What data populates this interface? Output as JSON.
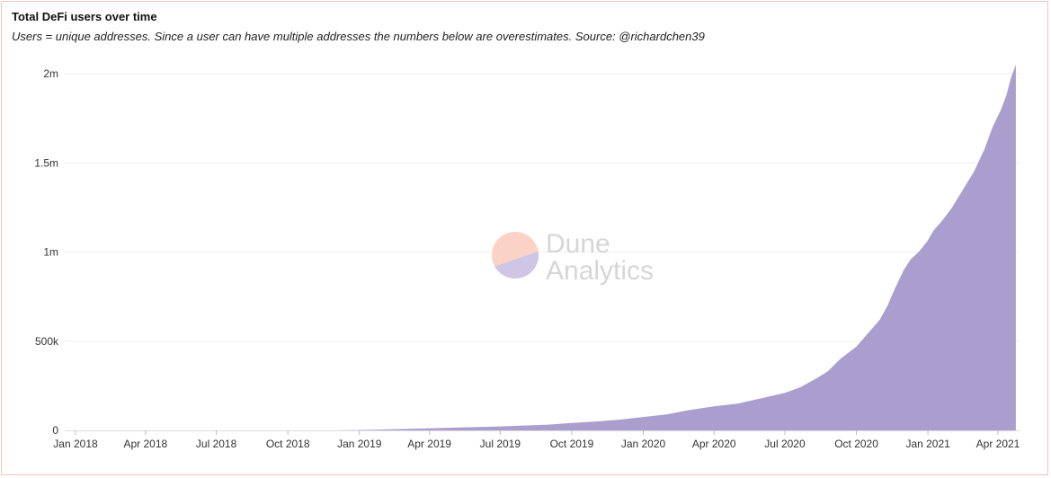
{
  "header": {
    "title": "Total DeFi users over time",
    "subtitle": "Users = unique addresses. Since a user can have multiple addresses the numbers below are overestimates. Source: @richardchen39"
  },
  "watermark": {
    "line1": "Dune",
    "line2": "Analytics",
    "colors": [
      "#fbd3c6",
      "#cfc6e6"
    ]
  },
  "chart_data": {
    "type": "area",
    "title": "Total DeFi users over time",
    "xlabel": "",
    "ylabel": "",
    "color": "#a99ecd",
    "grid": true,
    "legend": "none",
    "xlim": [
      "2018-01-01",
      "2021-05-01"
    ],
    "ylim": [
      0,
      2100000
    ],
    "x_ticks": [
      {
        "date": "2018-01-01",
        "label": "Jan 2018"
      },
      {
        "date": "2018-04-01",
        "label": "Apr 2018"
      },
      {
        "date": "2018-07-01",
        "label": "Jul 2018"
      },
      {
        "date": "2018-10-01",
        "label": "Oct 2018"
      },
      {
        "date": "2019-01-01",
        "label": "Jan 2019"
      },
      {
        "date": "2019-04-01",
        "label": "Apr 2019"
      },
      {
        "date": "2019-07-01",
        "label": "Jul 2019"
      },
      {
        "date": "2019-10-01",
        "label": "Oct 2019"
      },
      {
        "date": "2020-01-01",
        "label": "Jan 2020"
      },
      {
        "date": "2020-04-01",
        "label": "Apr 2020"
      },
      {
        "date": "2020-07-01",
        "label": "Jul 2020"
      },
      {
        "date": "2020-10-01",
        "label": "Oct 2020"
      },
      {
        "date": "2021-01-01",
        "label": "Jan 2021"
      },
      {
        "date": "2021-04-01",
        "label": "Apr 2021"
      }
    ],
    "y_ticks": [
      {
        "value": 0,
        "label": "0"
      },
      {
        "value": 500000,
        "label": "500k"
      },
      {
        "value": 1000000,
        "label": "1m"
      },
      {
        "value": 1500000,
        "label": "1.5m"
      },
      {
        "value": 2000000,
        "label": "2m"
      }
    ],
    "series": [
      {
        "points": [
          {
            "x": "2018-01-01",
            "y": 0
          },
          {
            "x": "2018-06-01",
            "y": 0
          },
          {
            "x": "2018-12-01",
            "y": 0
          },
          {
            "x": "2019-01-15",
            "y": 3000
          },
          {
            "x": "2019-03-01",
            "y": 8000
          },
          {
            "x": "2019-05-01",
            "y": 15000
          },
          {
            "x": "2019-07-01",
            "y": 22000
          },
          {
            "x": "2019-09-01",
            "y": 32000
          },
          {
            "x": "2019-10-01",
            "y": 42000
          },
          {
            "x": "2019-11-01",
            "y": 50000
          },
          {
            "x": "2019-12-01",
            "y": 60000
          },
          {
            "x": "2020-01-01",
            "y": 75000
          },
          {
            "x": "2020-02-01",
            "y": 90000
          },
          {
            "x": "2020-03-01",
            "y": 115000
          },
          {
            "x": "2020-04-01",
            "y": 135000
          },
          {
            "x": "2020-05-01",
            "y": 150000
          },
          {
            "x": "2020-06-01",
            "y": 180000
          },
          {
            "x": "2020-07-01",
            "y": 210000
          },
          {
            "x": "2020-07-20",
            "y": 240000
          },
          {
            "x": "2020-08-10",
            "y": 290000
          },
          {
            "x": "2020-08-25",
            "y": 330000
          },
          {
            "x": "2020-09-10",
            "y": 400000
          },
          {
            "x": "2020-09-25",
            "y": 450000
          },
          {
            "x": "2020-10-01",
            "y": 470000
          },
          {
            "x": "2020-10-15",
            "y": 540000
          },
          {
            "x": "2020-10-31",
            "y": 620000
          },
          {
            "x": "2020-11-10",
            "y": 700000
          },
          {
            "x": "2020-11-20",
            "y": 800000
          },
          {
            "x": "2020-12-01",
            "y": 900000
          },
          {
            "x": "2020-12-10",
            "y": 960000
          },
          {
            "x": "2020-12-20",
            "y": 1000000
          },
          {
            "x": "2020-12-31",
            "y": 1060000
          },
          {
            "x": "2021-01-08",
            "y": 1120000
          },
          {
            "x": "2021-01-20",
            "y": 1180000
          },
          {
            "x": "2021-02-01",
            "y": 1250000
          },
          {
            "x": "2021-02-15",
            "y": 1350000
          },
          {
            "x": "2021-03-01",
            "y": 1450000
          },
          {
            "x": "2021-03-15",
            "y": 1580000
          },
          {
            "x": "2021-03-25",
            "y": 1700000
          },
          {
            "x": "2021-04-05",
            "y": 1800000
          },
          {
            "x": "2021-04-12",
            "y": 1880000
          },
          {
            "x": "2021-04-18",
            "y": 1980000
          },
          {
            "x": "2021-04-24",
            "y": 2050000
          }
        ]
      }
    ]
  }
}
